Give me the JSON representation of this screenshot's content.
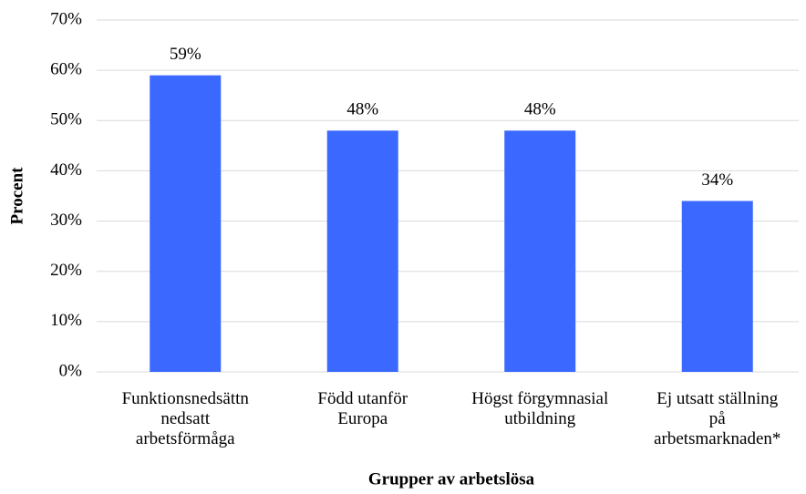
{
  "chart_data": {
    "type": "bar",
    "categories": [
      "Funktionsnedsättn\nnedsatt\narbetsförmåga",
      "Född utanför\nEuropa",
      "Högst förgymnasial\nutbildning",
      "Ej utsatt ställning\npå\narbetsmarknaden*"
    ],
    "values": [
      59,
      48,
      48,
      34
    ],
    "value_labels": [
      "59%",
      "48%",
      "48%",
      "34%"
    ],
    "color": "#3b68ff",
    "ylabel": "Procent",
    "xlabel": "Grupper av arbetslösa",
    "ylim": [
      0,
      70
    ],
    "yticks": [
      {
        "value": 0,
        "label": "0%"
      },
      {
        "value": 10,
        "label": "10%"
      },
      {
        "value": 20,
        "label": "20%"
      },
      {
        "value": 30,
        "label": "30%"
      },
      {
        "value": 40,
        "label": "40%"
      },
      {
        "value": 50,
        "label": "50%"
      },
      {
        "value": 60,
        "label": "60%"
      },
      {
        "value": 70,
        "label": "70%"
      }
    ],
    "grid": true
  }
}
